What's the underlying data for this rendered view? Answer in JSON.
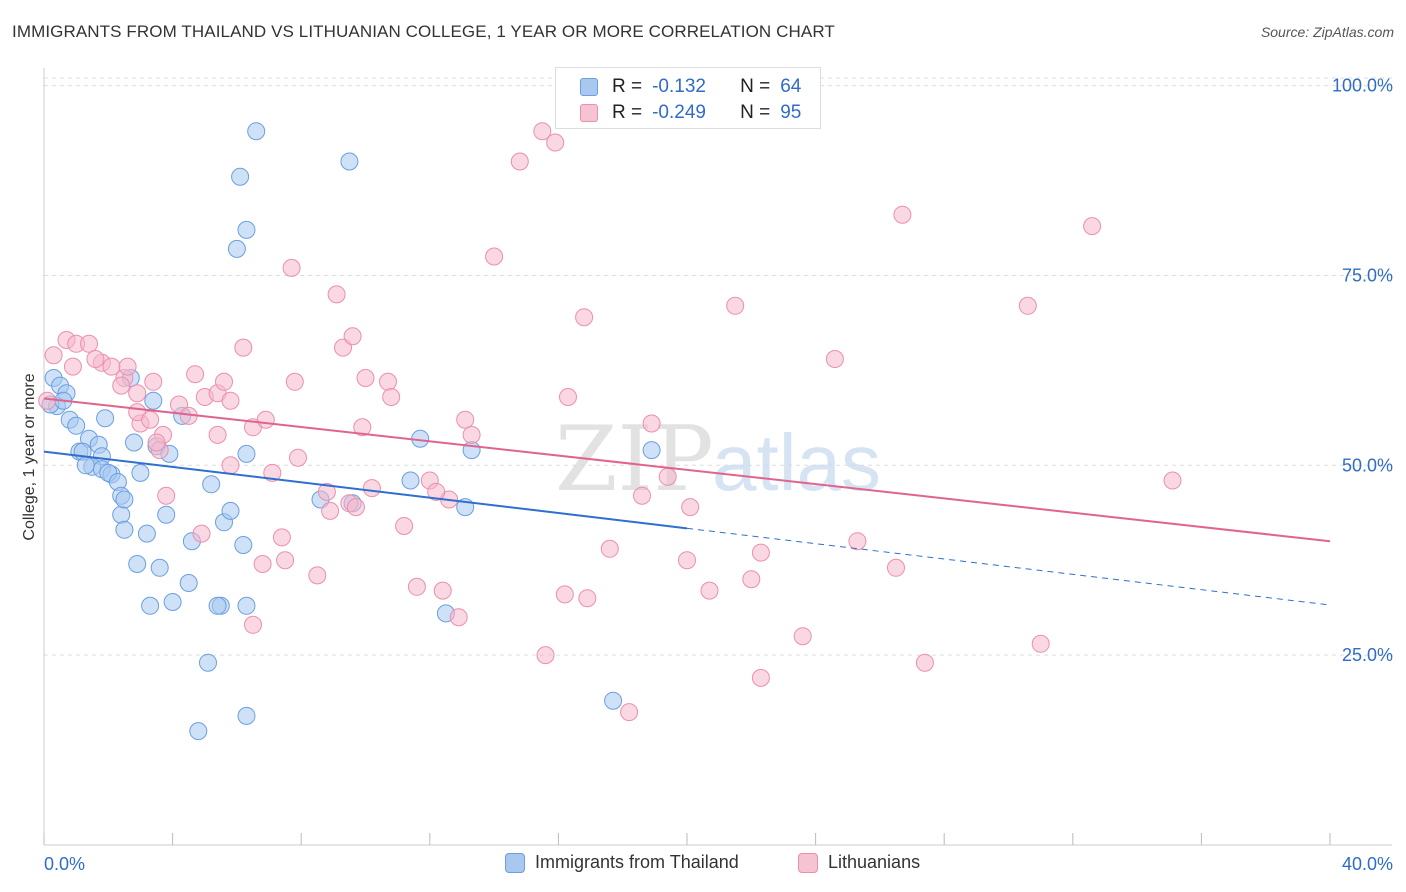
{
  "title": "IMMIGRANTS FROM THAILAND VS LITHUANIAN COLLEGE, 1 YEAR OR MORE CORRELATION CHART",
  "source": "Source: ZipAtlas.com",
  "watermark": {
    "zip": "ZIP",
    "atlas": "atlas"
  },
  "colors": {
    "blue_fill": "#a8c8f0",
    "blue_stroke": "#6a9fe0",
    "blue_line": "#2e6fcf",
    "pink_fill": "#f6b8cc",
    "pink_stroke": "#ec8fab",
    "pink_line": "#e0648e",
    "value_text": "#2f6cc9",
    "grid": "#dddddd"
  },
  "legend_top": {
    "rows": [
      {
        "r_label": "R =",
        "r_value": "-0.132",
        "n_label": "N =",
        "n_value": "64"
      },
      {
        "r_label": "R =",
        "r_value": "-0.249",
        "n_label": "N =",
        "n_value": "95"
      }
    ]
  },
  "legend_bottom": [
    "Immigrants from Thailand",
    "Lithuanians"
  ],
  "chart_data": {
    "type": "scatter",
    "title": "IMMIGRANTS FROM THAILAND VS LITHUANIAN COLLEGE, 1 YEAR OR MORE CORRELATION CHART",
    "xlabel": "",
    "ylabel": "College, 1 year or more",
    "xlim": [
      0,
      40
    ],
    "ylim": [
      0,
      105
    ],
    "x_tick_labels": [
      {
        "value": 0,
        "label": "0.0%"
      },
      {
        "value": 40,
        "label": "40.0%"
      }
    ],
    "y_tick_labels": [
      {
        "value": 25,
        "label": "25.0%"
      },
      {
        "value": 50,
        "label": "50.0%"
      },
      {
        "value": 75,
        "label": "75.0%"
      },
      {
        "value": 100,
        "label": "100.0%"
      }
    ],
    "x_minor_ticks": [
      0,
      4,
      8,
      12,
      16,
      20,
      24,
      28,
      32,
      36,
      40
    ],
    "series": [
      {
        "name": "Immigrants from Thailand",
        "R": -0.132,
        "N": 64,
        "trend": {
          "x_start": 0,
          "y_start": 51.8,
          "x_solid_end": 20,
          "y_solid_end": 41.7,
          "x_end": 40,
          "y_end": 31.6
        },
        "points": [
          [
            0.3,
            61.5
          ],
          [
            0.5,
            60.5
          ],
          [
            0.7,
            59.5
          ],
          [
            0.4,
            57.8
          ],
          [
            0.8,
            56.0
          ],
          [
            1.0,
            55.2
          ],
          [
            1.4,
            53.5
          ],
          [
            1.7,
            52.7
          ],
          [
            1.1,
            51.8
          ],
          [
            1.2,
            51.8
          ],
          [
            1.8,
            51.2
          ],
          [
            1.5,
            49.8
          ],
          [
            1.8,
            49.5
          ],
          [
            2.1,
            48.8
          ],
          [
            2.0,
            49.0
          ],
          [
            2.3,
            47.8
          ],
          [
            1.9,
            56.2
          ],
          [
            2.7,
            61.5
          ],
          [
            2.8,
            53.0
          ],
          [
            2.4,
            46.0
          ],
          [
            3.0,
            49.0
          ],
          [
            2.4,
            43.5
          ],
          [
            2.5,
            41.5
          ],
          [
            3.2,
            41.0
          ],
          [
            3.4,
            58.5
          ],
          [
            3.5,
            52.5
          ],
          [
            3.9,
            51.5
          ],
          [
            3.6,
            36.5
          ],
          [
            3.8,
            43.5
          ],
          [
            2.9,
            37.0
          ],
          [
            3.3,
            31.5
          ],
          [
            4.0,
            32.0
          ],
          [
            4.5,
            34.5
          ],
          [
            4.6,
            40.0
          ],
          [
            5.2,
            47.5
          ],
          [
            5.6,
            42.5
          ],
          [
            5.5,
            31.5
          ],
          [
            5.4,
            31.5
          ],
          [
            6.3,
            31.5
          ],
          [
            6.6,
            94.0
          ],
          [
            6.3,
            81.0
          ],
          [
            6.1,
            88.0
          ],
          [
            6.0,
            78.5
          ],
          [
            5.8,
            44.0
          ],
          [
            6.2,
            39.5
          ],
          [
            6.3,
            51.5
          ],
          [
            5.1,
            24.0
          ],
          [
            6.3,
            17.0
          ],
          [
            4.8,
            15.0
          ],
          [
            9.5,
            90.0
          ],
          [
            8.6,
            45.5
          ],
          [
            9.6,
            45.0
          ],
          [
            11.4,
            48.0
          ],
          [
            11.7,
            53.5
          ],
          [
            12.5,
            30.5
          ],
          [
            13.1,
            44.5
          ],
          [
            13.3,
            52.0
          ],
          [
            18.9,
            52.0
          ],
          [
            17.7,
            19.0
          ],
          [
            0.2,
            58.0
          ],
          [
            0.6,
            58.5
          ],
          [
            4.3,
            56.5
          ],
          [
            2.5,
            45.5
          ],
          [
            1.3,
            50.0
          ]
        ]
      },
      {
        "name": "Lithuanians",
        "R": -0.249,
        "N": 95,
        "trend": {
          "x_start": 0,
          "y_start": 58.8,
          "x_end": 40,
          "y_end": 40.0
        },
        "points": [
          [
            0.1,
            58.5
          ],
          [
            0.3,
            64.5
          ],
          [
            0.7,
            66.5
          ],
          [
            1.0,
            66.0
          ],
          [
            1.4,
            66.0
          ],
          [
            1.8,
            63.5
          ],
          [
            2.1,
            63.0
          ],
          [
            2.5,
            61.5
          ],
          [
            3.4,
            61.0
          ],
          [
            2.4,
            60.5
          ],
          [
            2.9,
            59.5
          ],
          [
            3.0,
            55.5
          ],
          [
            2.9,
            57.0
          ],
          [
            3.7,
            54.0
          ],
          [
            3.6,
            52.0
          ],
          [
            3.8,
            46.0
          ],
          [
            4.2,
            58.0
          ],
          [
            4.7,
            62.0
          ],
          [
            5.0,
            59.0
          ],
          [
            5.4,
            59.5
          ],
          [
            5.6,
            61.0
          ],
          [
            5.8,
            58.5
          ],
          [
            5.4,
            54.0
          ],
          [
            6.2,
            65.5
          ],
          [
            5.8,
            50.0
          ],
          [
            6.5,
            55.0
          ],
          [
            6.9,
            56.0
          ],
          [
            7.1,
            49.0
          ],
          [
            7.5,
            37.5
          ],
          [
            7.8,
            61.0
          ],
          [
            7.9,
            51.0
          ],
          [
            7.7,
            76.0
          ],
          [
            9.1,
            72.5
          ],
          [
            9.3,
            65.5
          ],
          [
            9.6,
            67.0
          ],
          [
            10.0,
            61.5
          ],
          [
            9.9,
            55.0
          ],
          [
            10.2,
            47.0
          ],
          [
            9.5,
            45.0
          ],
          [
            9.7,
            44.5
          ],
          [
            10.7,
            61.0
          ],
          [
            10.8,
            59.0
          ],
          [
            11.2,
            42.0
          ],
          [
            11.6,
            34.0
          ],
          [
            12.0,
            48.0
          ],
          [
            12.4,
            33.5
          ],
          [
            12.6,
            45.5
          ],
          [
            12.9,
            30.0
          ],
          [
            13.1,
            56.0
          ],
          [
            13.3,
            54.0
          ],
          [
            14.0,
            77.5
          ],
          [
            14.8,
            90.0
          ],
          [
            15.5,
            94.0
          ],
          [
            15.9,
            92.5
          ],
          [
            15.6,
            25.0
          ],
          [
            16.2,
            33.0
          ],
          [
            16.3,
            59.0
          ],
          [
            16.8,
            69.5
          ],
          [
            16.9,
            32.5
          ],
          [
            17.6,
            39.0
          ],
          [
            18.2,
            17.5
          ],
          [
            18.6,
            46.0
          ],
          [
            18.9,
            55.5
          ],
          [
            19.4,
            48.5
          ],
          [
            20.0,
            37.5
          ],
          [
            20.1,
            44.5
          ],
          [
            20.7,
            33.5
          ],
          [
            21.5,
            71.0
          ],
          [
            22.0,
            35.0
          ],
          [
            22.3,
            38.5
          ],
          [
            22.3,
            22.0
          ],
          [
            23.6,
            27.5
          ],
          [
            24.6,
            64.0
          ],
          [
            25.3,
            40.0
          ],
          [
            26.5,
            36.5
          ],
          [
            26.7,
            83.0
          ],
          [
            27.4,
            24.0
          ],
          [
            30.6,
            71.0
          ],
          [
            31.0,
            26.5
          ],
          [
            32.6,
            81.5
          ],
          [
            35.1,
            48.0
          ],
          [
            3.3,
            56.0
          ],
          [
            4.5,
            56.5
          ],
          [
            6.8,
            37.0
          ],
          [
            7.4,
            40.5
          ],
          [
            8.5,
            35.5
          ],
          [
            8.8,
            46.5
          ],
          [
            8.9,
            44.0
          ],
          [
            2.6,
            63.0
          ],
          [
            1.6,
            64.0
          ],
          [
            0.9,
            63.0
          ],
          [
            6.5,
            29.0
          ],
          [
            4.9,
            41.0
          ],
          [
            3.5,
            53.0
          ],
          [
            12.2,
            46.5
          ]
        ]
      }
    ]
  }
}
